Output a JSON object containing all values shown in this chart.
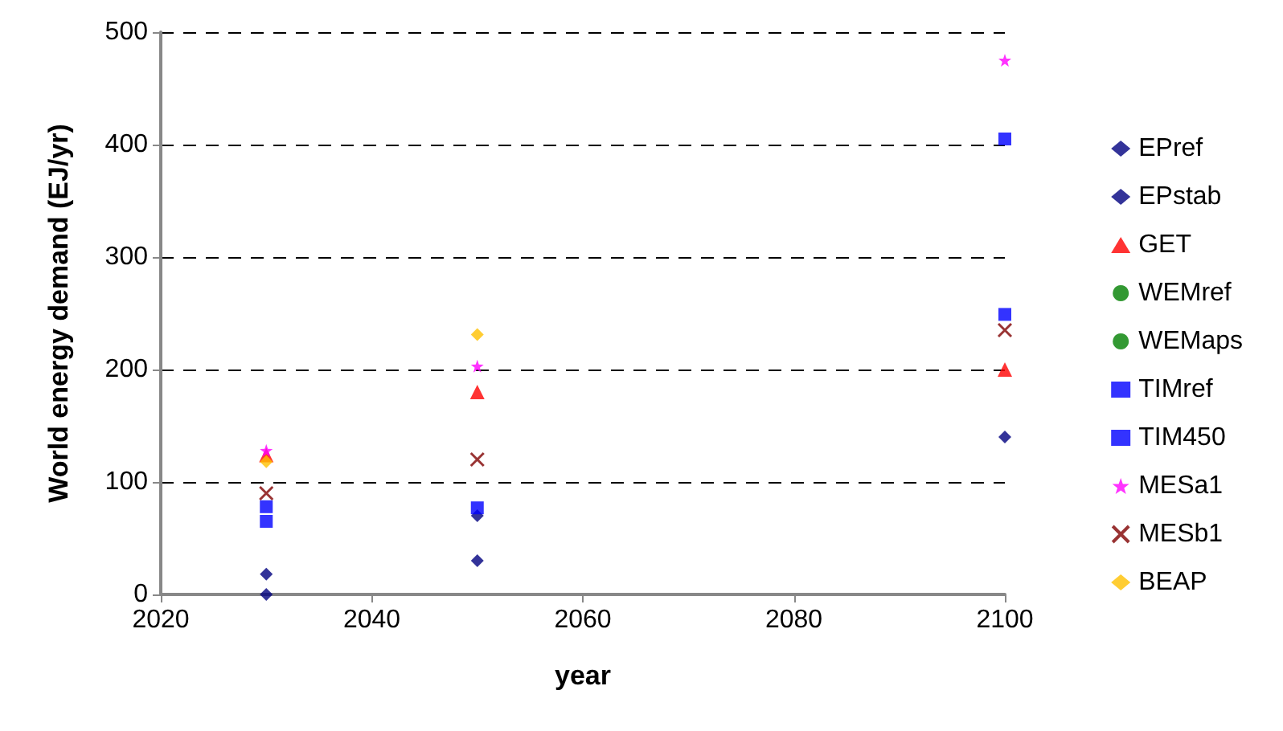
{
  "chart_data": {
    "type": "scatter",
    "xlabel": "year",
    "ylabel": "World energy demand (EJ/yr)",
    "x": [
      2030,
      2050,
      2100
    ],
    "xlim": [
      2020,
      2100
    ],
    "xticks": [
      2020,
      2040,
      2060,
      2080,
      2100
    ],
    "ylim": [
      0,
      500
    ],
    "yticks": [
      0,
      100,
      200,
      300,
      400,
      500
    ],
    "grid": "y",
    "legend": "right",
    "series": [
      {
        "name": "EPref",
        "color": "#000080",
        "marker": "diamond",
        "values": [
          0,
          30,
          140
        ]
      },
      {
        "name": "EPstab",
        "color": "#000080",
        "marker": "diamond",
        "values": [
          18,
          70,
          null
        ]
      },
      {
        "name": "GET",
        "color": "#ff0000",
        "marker": "triangle",
        "values": [
          124,
          180,
          200
        ]
      },
      {
        "name": "WEMref",
        "color": "#008000",
        "marker": "circle",
        "values": [
          null,
          null,
          null
        ]
      },
      {
        "name": "WEMaps",
        "color": "#008000",
        "marker": "circle",
        "values": [
          null,
          null,
          null
        ]
      },
      {
        "name": "TIMref",
        "color": "#0000ff",
        "marker": "square",
        "values": [
          65,
          77,
          249
        ]
      },
      {
        "name": "TIM450",
        "color": "#0000ff",
        "marker": "square",
        "values": [
          78,
          null,
          405
        ]
      },
      {
        "name": "MESa1",
        "color": "#ff00ff",
        "marker": "star",
        "values": [
          128,
          203,
          475
        ]
      },
      {
        "name": "MESb1",
        "color": "#800000",
        "marker": "cross",
        "values": [
          90,
          120,
          235
        ]
      },
      {
        "name": "BEAP",
        "color": "#ffc000",
        "marker": "diamond",
        "values": [
          118,
          231,
          null
        ]
      }
    ]
  }
}
